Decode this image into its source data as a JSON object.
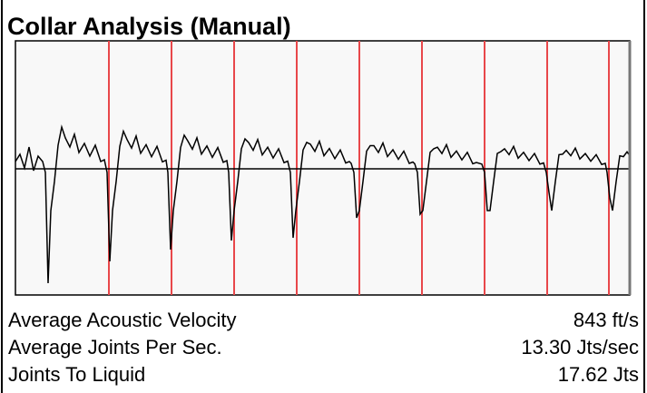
{
  "title": "Collar Analysis (Manual)",
  "stats": [
    {
      "label": "Average Acoustic Velocity",
      "value": "843 ft/s"
    },
    {
      "label": "Average Joints Per Sec.",
      "value": "13.30 Jts/sec"
    },
    {
      "label": "Joints To Liquid",
      "value": "17.62 Jts"
    }
  ]
}
